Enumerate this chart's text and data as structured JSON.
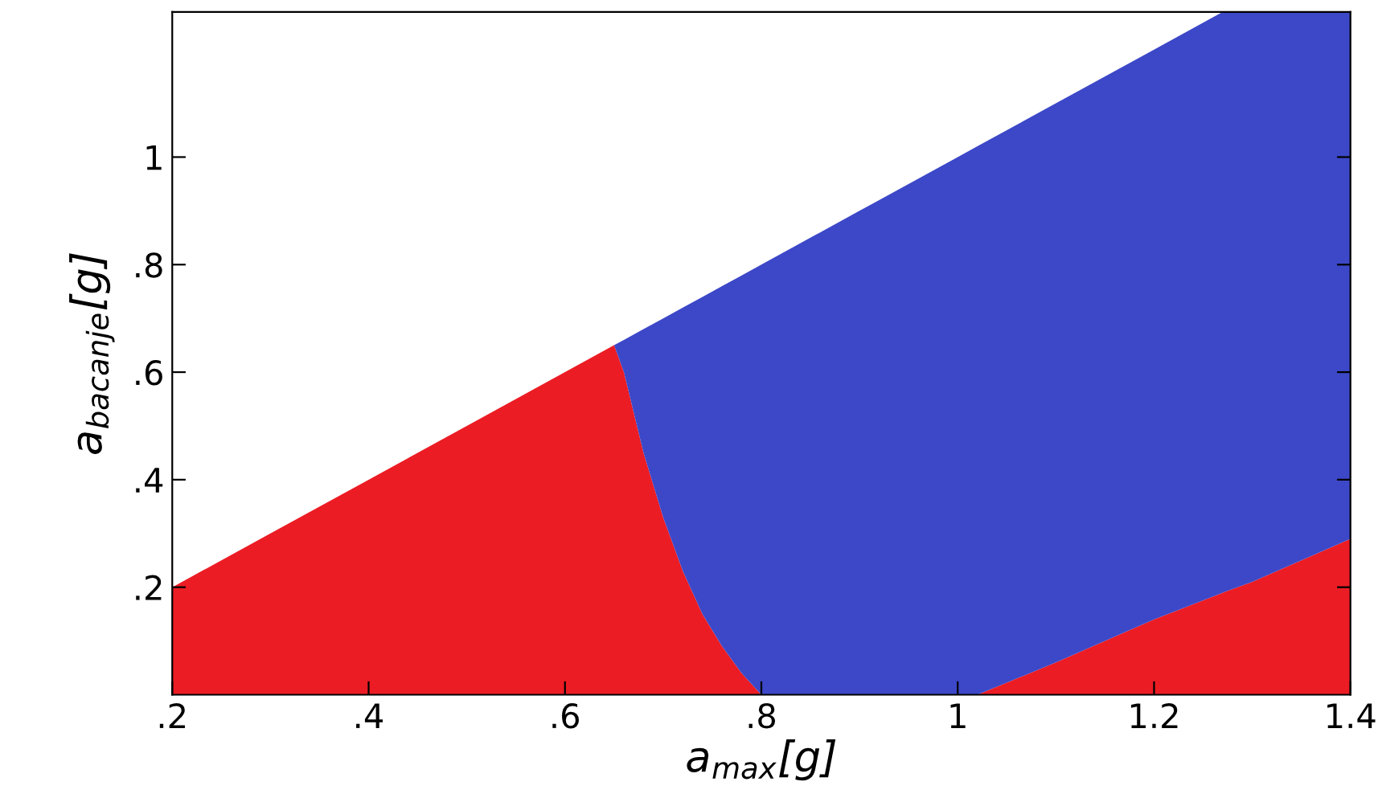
{
  "chart_data": {
    "type": "area",
    "stacked": true,
    "xlabel": "a$_{max}$[g]",
    "ylabel": "a$_{bacanje}$[g]",
    "x": [
      0.2,
      0.3,
      0.4,
      0.5,
      0.6,
      0.65,
      0.66,
      0.68,
      0.7,
      0.72,
      0.74,
      0.76,
      0.78,
      0.8,
      0.9,
      1.0,
      1.02,
      1.1,
      1.2,
      1.27,
      1.3,
      1.4
    ],
    "series": [
      {
        "color": "#ec1c24",
        "values": [
          0.2,
          0.3,
          0.4,
          0.5,
          0.6,
          0.65,
          0.6,
          0.45,
          0.33,
          0.23,
          0.15,
          0.09,
          0.04,
          0,
          0,
          0,
          0,
          0.06,
          0.14,
          0.19,
          0.21,
          0.29
        ]
      },
      {
        "color": "#3c48c8",
        "values": [
          0,
          0,
          0,
          0,
          0,
          0,
          0.06,
          0.23,
          0.37,
          0.49,
          0.59,
          0.67,
          0.74,
          0.8,
          0.9,
          1.0,
          1.02,
          1.04,
          1.06,
          1.08,
          1.06,
          0.98
        ]
      }
    ],
    "xlim": [
      0.2,
      1.4
    ],
    "ylim": [
      0,
      1.27
    ],
    "xticks": [
      {
        "value": 0.2,
        "label": ".2"
      },
      {
        "value": 0.4,
        "label": ".4"
      },
      {
        "value": 0.6,
        "label": ".6"
      },
      {
        "value": 0.8,
        "label": ".8"
      },
      1,
      {
        "value": 1.2,
        "label": "1.2"
      },
      {
        "value": 1.4,
        "label": "1.4"
      }
    ],
    "yticks": [
      {
        "value": 0.2,
        "label": ".2"
      },
      {
        "value": 0.4,
        "label": ".4"
      },
      {
        "value": 0.6,
        "label": ".6"
      },
      {
        "value": 0.8,
        "label": ".8"
      },
      1
    ],
    "grid": false,
    "legend": false
  }
}
